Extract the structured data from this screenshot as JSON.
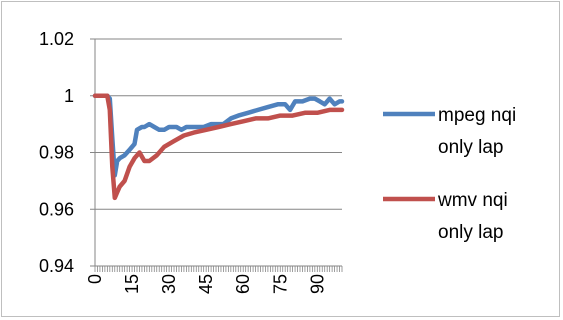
{
  "chart_data": {
    "type": "line",
    "title": "",
    "xlabel": "",
    "ylabel": "",
    "ylim": [
      0.94,
      1.02
    ],
    "xlim": [
      0,
      100
    ],
    "y_ticks": [
      "1.02",
      "1",
      "0.98",
      "0.96",
      "0.94"
    ],
    "x_ticks": [
      "0",
      "15",
      "30",
      "45",
      "60",
      "75",
      "90"
    ],
    "grid": "horizontal major gridlines",
    "legend_position": "right",
    "series": [
      {
        "name": "mpeg nqi only lap",
        "color": "#4f81bd",
        "points": [
          [
            0,
            1.0
          ],
          [
            5,
            1.0
          ],
          [
            6,
            0.999
          ],
          [
            7,
            0.985
          ],
          [
            8,
            0.972
          ],
          [
            9,
            0.977
          ],
          [
            10,
            0.978
          ],
          [
            12,
            0.979
          ],
          [
            14,
            0.981
          ],
          [
            16,
            0.983
          ],
          [
            17,
            0.988
          ],
          [
            19,
            0.989
          ],
          [
            20,
            0.989
          ],
          [
            22,
            0.99
          ],
          [
            24,
            0.989
          ],
          [
            26,
            0.988
          ],
          [
            28,
            0.988
          ],
          [
            30,
            0.989
          ],
          [
            33,
            0.989
          ],
          [
            35,
            0.988
          ],
          [
            37,
            0.989
          ],
          [
            40,
            0.989
          ],
          [
            42,
            0.989
          ],
          [
            44,
            0.989
          ],
          [
            47,
            0.99
          ],
          [
            50,
            0.99
          ],
          [
            52,
            0.99
          ],
          [
            55,
            0.992
          ],
          [
            58,
            0.993
          ],
          [
            62,
            0.994
          ],
          [
            66,
            0.995
          ],
          [
            70,
            0.996
          ],
          [
            74,
            0.997
          ],
          [
            77,
            0.997
          ],
          [
            79,
            0.995
          ],
          [
            81,
            0.998
          ],
          [
            84,
            0.998
          ],
          [
            87,
            0.999
          ],
          [
            89,
            0.999
          ],
          [
            91,
            0.998
          ],
          [
            93,
            0.997
          ],
          [
            95,
            0.999
          ],
          [
            97,
            0.997
          ],
          [
            99,
            0.998
          ],
          [
            100,
            0.998
          ]
        ]
      },
      {
        "name": "wmv nqi only lap",
        "color": "#c0504d",
        "points": [
          [
            0,
            1.0
          ],
          [
            5,
            1.0
          ],
          [
            6,
            0.995
          ],
          [
            7,
            0.975
          ],
          [
            8,
            0.964
          ],
          [
            9,
            0.966
          ],
          [
            10,
            0.968
          ],
          [
            12,
            0.97
          ],
          [
            14,
            0.975
          ],
          [
            16,
            0.978
          ],
          [
            18,
            0.98
          ],
          [
            20,
            0.977
          ],
          [
            22,
            0.977
          ],
          [
            25,
            0.979
          ],
          [
            28,
            0.982
          ],
          [
            32,
            0.984
          ],
          [
            36,
            0.986
          ],
          [
            40,
            0.987
          ],
          [
            45,
            0.988
          ],
          [
            50,
            0.989
          ],
          [
            55,
            0.99
          ],
          [
            60,
            0.991
          ],
          [
            65,
            0.992
          ],
          [
            70,
            0.992
          ],
          [
            75,
            0.993
          ],
          [
            80,
            0.993
          ],
          [
            85,
            0.994
          ],
          [
            90,
            0.994
          ],
          [
            95,
            0.995
          ],
          [
            100,
            0.995
          ]
        ]
      }
    ]
  }
}
